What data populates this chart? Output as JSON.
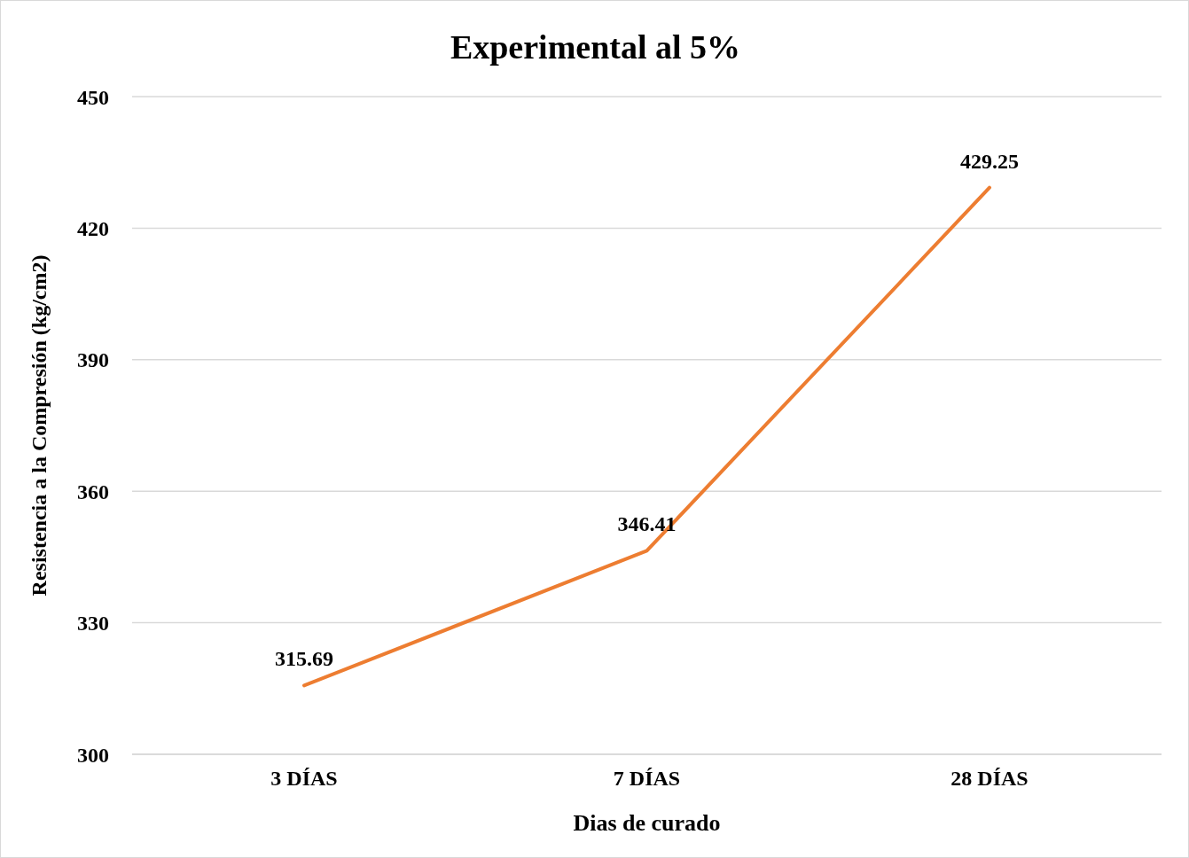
{
  "chart_data": {
    "type": "line",
    "title": "Experimental al 5%",
    "xlabel": "Dias de curado",
    "ylabel": "Resistencia a la Compresión (kg/cm2)",
    "categories": [
      "3 DÍAS",
      "7 DÍAS",
      "28 DÍAS"
    ],
    "series": [
      {
        "color": "#ed7d31",
        "values": [
          315.69,
          346.41,
          429.25
        ]
      }
    ],
    "ylim": [
      300,
      450
    ],
    "yticks": [
      300,
      330,
      360,
      390,
      420,
      450
    ],
    "grid": "y",
    "data_labels": true,
    "marker": "none",
    "line_style": "solid",
    "legend": false
  }
}
